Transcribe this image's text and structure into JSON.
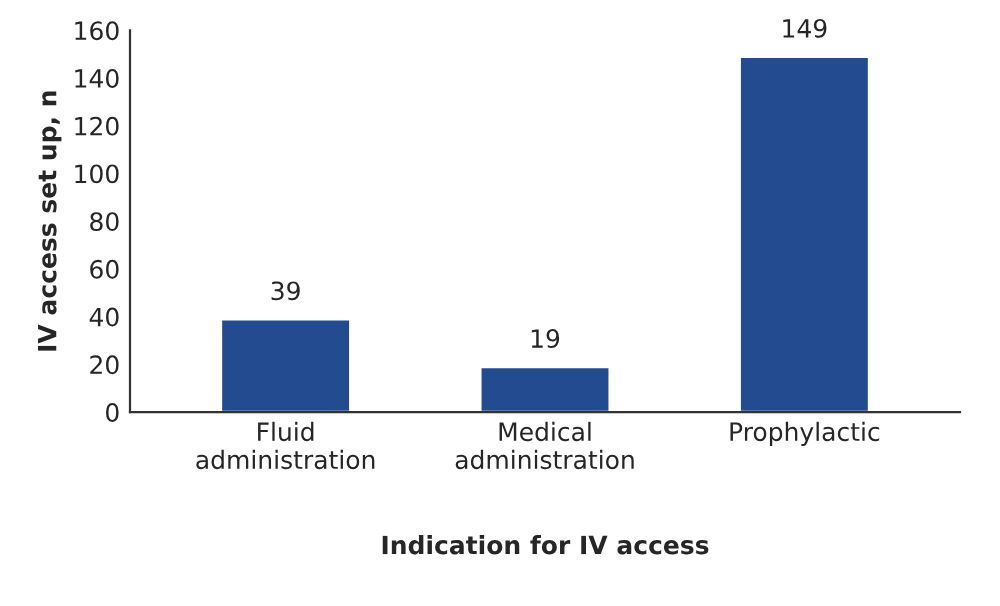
{
  "chart_data": {
    "type": "bar",
    "xlabel": "Indication for IV access",
    "ylabel": "IV access set up, n",
    "categories": [
      "Fluid administration",
      "Medical administration",
      "Prophylactic"
    ],
    "values": [
      39,
      19,
      149
    ],
    "color": "#234b8f",
    "ylim": [
      0,
      160
    ],
    "yticks": [
      0,
      20,
      40,
      60,
      80,
      100,
      120,
      140,
      160
    ],
    "data_labels": true,
    "grid": false
  }
}
